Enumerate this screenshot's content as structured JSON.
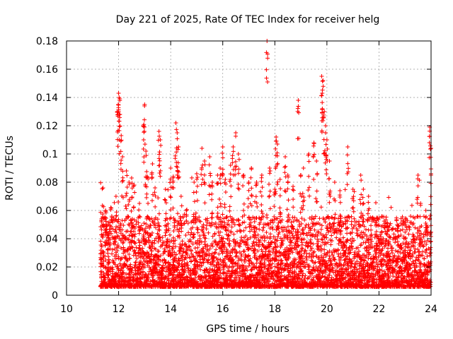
{
  "chart_data": {
    "type": "scatter",
    "title": "Day 221 of 2025, Rate Of TEC Index for receiver helg",
    "xlabel": "GPS time / hours",
    "ylabel": "ROTI / TECUs",
    "xlim": [
      10,
      24
    ],
    "ylim": [
      0,
      0.18
    ],
    "x_ticks": [
      10,
      12,
      14,
      16,
      18,
      20,
      22,
      24
    ],
    "x_tick_labels": [
      "10",
      "12",
      "14",
      "16",
      "18",
      "20",
      "22",
      "24"
    ],
    "y_ticks": [
      0,
      0.02,
      0.04,
      0.06,
      0.08,
      0.1,
      0.12,
      0.14,
      0.16,
      0.18
    ],
    "y_tick_labels": [
      "0",
      "0.02",
      "0.04",
      "0.06",
      "0.08",
      "0.1",
      "0.12",
      "0.14",
      "0.16",
      "0.18"
    ],
    "grid": true,
    "marker": "+",
    "marker_color": "#ff0000",
    "series": [
      {
        "points": [
          [
            11.4,
            0.076
          ],
          [
            11.5,
            0.06
          ],
          [
            11.6,
            0.05
          ],
          [
            11.7,
            0.062
          ],
          [
            11.9,
            0.07
          ],
          [
            11.95,
            0.13
          ],
          [
            12.0,
            0.143
          ],
          [
            12.02,
            0.14
          ],
          [
            12.05,
            0.128
          ],
          [
            12.1,
            0.113
          ],
          [
            12.15,
            0.098
          ],
          [
            12.3,
            0.088
          ],
          [
            12.4,
            0.08
          ],
          [
            12.5,
            0.083
          ],
          [
            12.6,
            0.078
          ],
          [
            12.8,
            0.065
          ],
          [
            12.95,
            0.12
          ],
          [
            13.0,
            0.135
          ],
          [
            13.05,
            0.102
          ],
          [
            13.1,
            0.084
          ],
          [
            13.3,
            0.093
          ],
          [
            13.4,
            0.076
          ],
          [
            13.55,
            0.116
          ],
          [
            13.6,
            0.11
          ],
          [
            13.8,
            0.075
          ],
          [
            14.0,
            0.09
          ],
          [
            14.1,
            0.084
          ],
          [
            14.2,
            0.122
          ],
          [
            14.25,
            0.115
          ],
          [
            14.3,
            0.105
          ],
          [
            14.4,
            0.07
          ],
          [
            14.6,
            0.06
          ],
          [
            14.9,
            0.08
          ],
          [
            15.0,
            0.086
          ],
          [
            15.2,
            0.104
          ],
          [
            15.3,
            0.095
          ],
          [
            15.5,
            0.098
          ],
          [
            15.6,
            0.08
          ],
          [
            15.8,
            0.085
          ],
          [
            15.9,
            0.09
          ],
          [
            16.0,
            0.105
          ],
          [
            16.1,
            0.082
          ],
          [
            16.3,
            0.092
          ],
          [
            16.4,
            0.105
          ],
          [
            16.5,
            0.115
          ],
          [
            16.6,
            0.1
          ],
          [
            16.8,
            0.085
          ],
          [
            17.0,
            0.08
          ],
          [
            17.1,
            0.09
          ],
          [
            17.3,
            0.08
          ],
          [
            17.5,
            0.085
          ],
          [
            17.7,
            0.18
          ],
          [
            17.8,
            0.09
          ],
          [
            18.0,
            0.075
          ],
          [
            18.05,
            0.112
          ],
          [
            18.1,
            0.107
          ],
          [
            18.2,
            0.082
          ],
          [
            18.4,
            0.098
          ],
          [
            18.5,
            0.085
          ],
          [
            18.7,
            0.077
          ],
          [
            18.9,
            0.138
          ],
          [
            19.0,
            0.085
          ],
          [
            19.1,
            0.09
          ],
          [
            19.3,
            0.1
          ],
          [
            19.5,
            0.108
          ],
          [
            19.6,
            0.095
          ],
          [
            19.8,
            0.155
          ],
          [
            19.82,
            0.143
          ],
          [
            19.85,
            0.152
          ],
          [
            19.9,
            0.13
          ],
          [
            19.95,
            0.12
          ],
          [
            20.0,
            0.11
          ],
          [
            20.1,
            0.095
          ],
          [
            20.3,
            0.08
          ],
          [
            20.5,
            0.074
          ],
          [
            20.8,
            0.105
          ],
          [
            21.0,
            0.075
          ],
          [
            21.3,
            0.085
          ],
          [
            21.4,
            0.075
          ],
          [
            21.6,
            0.07
          ],
          [
            21.9,
            0.05
          ],
          [
            22.1,
            0.045
          ],
          [
            22.4,
            0.042
          ],
          [
            22.7,
            0.05
          ],
          [
            23.0,
            0.04
          ],
          [
            23.3,
            0.05
          ],
          [
            23.5,
            0.085
          ],
          [
            23.6,
            0.065
          ],
          [
            23.8,
            0.06
          ],
          [
            23.95,
            0.119
          ],
          [
            24.0,
            0.104
          ],
          [
            24.0,
            0.086
          ]
        ],
        "density_profile": [
          {
            "x_range": [
              11.3,
              24.0
            ],
            "typical_max": 0.05,
            "baseline_min": 0.0
          }
        ]
      }
    ]
  }
}
